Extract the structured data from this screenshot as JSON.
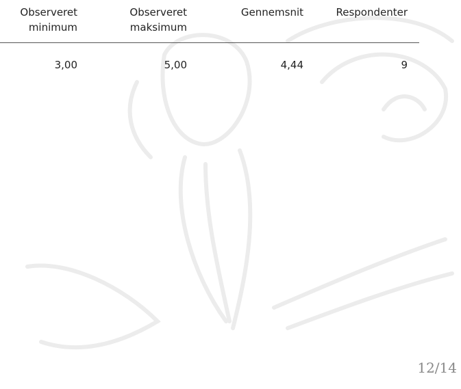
{
  "table": {
    "header": [
      [
        "Observeret",
        "minimum"
      ],
      [
        "Observeret",
        "maksimum"
      ],
      [
        "Gennemsnit"
      ],
      [
        "Respondenter"
      ]
    ],
    "rows": [
      [
        "3,00",
        "5,00",
        "4,44",
        "9"
      ]
    ]
  },
  "footer": {
    "page": "12/14"
  }
}
